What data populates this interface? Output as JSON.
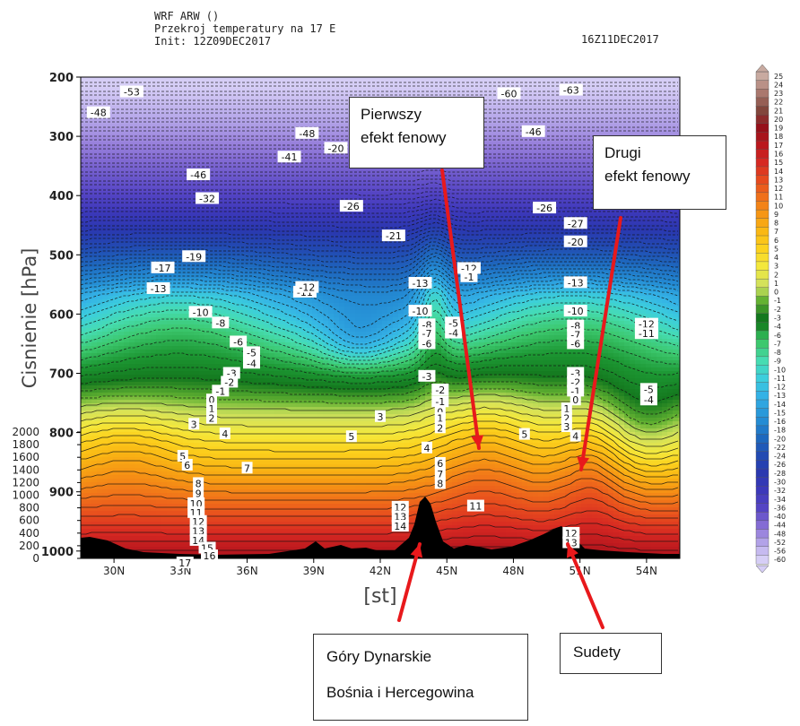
{
  "header": {
    "model": "WRF ARW ()",
    "title": "Przekroj temperatury na 17 E",
    "init": "Init: 12Z09DEC2017",
    "valid": "16Z11DEC2017"
  },
  "chart_data": {
    "type": "heatmap",
    "title": "Przekroj temperatury na 17 E",
    "xlabel": "[st]",
    "ylabel": "Cisnienie [hPa]",
    "y_ticks": [
      200,
      300,
      400,
      500,
      600,
      700,
      800,
      900,
      1000
    ],
    "ylim": [
      200,
      1000
    ],
    "x_ticks": [
      "30N",
      "33N",
      "36N",
      "39N",
      "42N",
      "45N",
      "48N",
      "51N",
      "54N"
    ],
    "xlim": [
      28.5,
      55.5
    ],
    "height_axis_ticks": [
      0,
      200,
      400,
      600,
      800,
      1000,
      1200,
      1400,
      1600,
      1800,
      2000
    ],
    "colorbar_ticks": [
      25,
      24,
      23,
      22,
      21,
      20,
      19,
      18,
      17,
      16,
      15,
      14,
      13,
      12,
      11,
      10,
      9,
      8,
      7,
      6,
      5,
      4,
      3,
      2,
      1,
      0,
      -1,
      -2,
      -3,
      -4,
      -6,
      -7,
      -8,
      -9,
      -10,
      -11,
      -12,
      -13,
      -14,
      -15,
      -16,
      -18,
      -20,
      -22,
      -24,
      -26,
      -28,
      -30,
      -32,
      -34,
      -36,
      -40,
      -44,
      -48,
      -52,
      -56,
      -60
    ],
    "isotherm_labels": [
      {
        "t": "-53",
        "lat": 30.8,
        "p": 225
      },
      {
        "t": "-48",
        "lat": 29.3,
        "p": 260
      },
      {
        "t": "-46",
        "lat": 33.8,
        "p": 365
      },
      {
        "t": "-32",
        "lat": 34.2,
        "p": 405
      },
      {
        "t": "-41",
        "lat": 37.9,
        "p": 335
      },
      {
        "t": "-48",
        "lat": 38.7,
        "p": 295
      },
      {
        "t": "-26",
        "lat": 40.7,
        "p": 418
      },
      {
        "t": "-21",
        "lat": 42.6,
        "p": 468
      },
      {
        "t": "-20",
        "lat": 40.0,
        "p": 320
      },
      {
        "t": "-13",
        "lat": 32.0,
        "p": 557
      },
      {
        "t": "-17",
        "lat": 32.2,
        "p": 522
      },
      {
        "t": "-19",
        "lat": 33.6,
        "p": 503
      },
      {
        "t": "-11",
        "lat": 38.6,
        "p": 563
      },
      {
        "t": "-12",
        "lat": 38.7,
        "p": 555
      },
      {
        "t": "-10",
        "lat": 33.9,
        "p": 597
      },
      {
        "t": "-8",
        "lat": 34.8,
        "p": 615
      },
      {
        "t": "-6",
        "lat": 35.6,
        "p": 647
      },
      {
        "t": "-5",
        "lat": 36.2,
        "p": 665
      },
      {
        "t": "-4",
        "lat": 36.2,
        "p": 683
      },
      {
        "t": "-3",
        "lat": 35.3,
        "p": 700
      },
      {
        "t": "-2",
        "lat": 35.2,
        "p": 715
      },
      {
        "t": "-1",
        "lat": 34.8,
        "p": 730
      },
      {
        "t": "0",
        "lat": 34.4,
        "p": 745
      },
      {
        "t": "1",
        "lat": 34.4,
        "p": 760
      },
      {
        "t": "2",
        "lat": 34.4,
        "p": 776
      },
      {
        "t": "3",
        "lat": 33.6,
        "p": 786
      },
      {
        "t": "4",
        "lat": 35.0,
        "p": 802
      },
      {
        "t": "5",
        "lat": 33.1,
        "p": 840
      },
      {
        "t": "6",
        "lat": 33.3,
        "p": 855
      },
      {
        "t": "7",
        "lat": 36.0,
        "p": 860
      },
      {
        "t": "8",
        "lat": 33.8,
        "p": 886
      },
      {
        "t": "9",
        "lat": 33.8,
        "p": 903
      },
      {
        "t": "10",
        "lat": 33.7,
        "p": 920
      },
      {
        "t": "11",
        "lat": 33.7,
        "p": 935
      },
      {
        "t": "12",
        "lat": 33.8,
        "p": 950
      },
      {
        "t": "13",
        "lat": 33.8,
        "p": 966
      },
      {
        "t": "14",
        "lat": 33.8,
        "p": 982
      },
      {
        "t": "15",
        "lat": 34.2,
        "p": 995
      },
      {
        "t": "16",
        "lat": 34.3,
        "p": 1008
      },
      {
        "t": "17",
        "lat": 33.2,
        "p": 1020
      },
      {
        "t": "3",
        "lat": 42.0,
        "p": 773
      },
      {
        "t": "5",
        "lat": 40.7,
        "p": 807
      },
      {
        "t": "11",
        "lat": 46.3,
        "p": 924
      },
      {
        "t": "12",
        "lat": 42.9,
        "p": 926
      },
      {
        "t": "13",
        "lat": 42.9,
        "p": 942
      },
      {
        "t": "14",
        "lat": 42.9,
        "p": 958
      },
      {
        "t": "-13",
        "lat": 43.8,
        "p": 548
      },
      {
        "t": "-10",
        "lat": 43.8,
        "p": 595
      },
      {
        "t": "-8",
        "lat": 44.1,
        "p": 618
      },
      {
        "t": "-7",
        "lat": 44.1,
        "p": 633
      },
      {
        "t": "-6",
        "lat": 44.1,
        "p": 650
      },
      {
        "t": "-5",
        "lat": 45.3,
        "p": 615
      },
      {
        "t": "-4",
        "lat": 45.3,
        "p": 632
      },
      {
        "t": "-3",
        "lat": 44.1,
        "p": 705
      },
      {
        "t": "-2",
        "lat": 44.7,
        "p": 728
      },
      {
        "t": "-1",
        "lat": 44.7,
        "p": 748
      },
      {
        "t": "0",
        "lat": 44.7,
        "p": 765
      },
      {
        "t": "1",
        "lat": 44.7,
        "p": 776
      },
      {
        "t": "2",
        "lat": 44.7,
        "p": 792
      },
      {
        "t": "4",
        "lat": 44.1,
        "p": 826
      },
      {
        "t": "6",
        "lat": 44.7,
        "p": 852
      },
      {
        "t": "7",
        "lat": 44.7,
        "p": 870
      },
      {
        "t": "8",
        "lat": 44.7,
        "p": 886
      },
      {
        "t": "-12",
        "lat": 46.0,
        "p": 523
      },
      {
        "t": "-1",
        "lat": 46.0,
        "p": 537
      },
      {
        "t": "5",
        "lat": 48.5,
        "p": 803
      },
      {
        "t": "-60",
        "lat": 47.8,
        "p": 228
      },
      {
        "t": "-63",
        "lat": 50.6,
        "p": 222
      },
      {
        "t": "-46",
        "lat": 48.9,
        "p": 292
      },
      {
        "t": "-26",
        "lat": 49.4,
        "p": 421
      },
      {
        "t": "-27",
        "lat": 50.8,
        "p": 447
      },
      {
        "t": "-20",
        "lat": 50.8,
        "p": 478
      },
      {
        "t": "-13",
        "lat": 50.8,
        "p": 547
      },
      {
        "t": "-10",
        "lat": 50.8,
        "p": 595
      },
      {
        "t": "-8",
        "lat": 50.8,
        "p": 620
      },
      {
        "t": "-7",
        "lat": 50.8,
        "p": 635
      },
      {
        "t": "-6",
        "lat": 50.8,
        "p": 650
      },
      {
        "t": "-3",
        "lat": 50.8,
        "p": 700
      },
      {
        "t": "-2",
        "lat": 50.8,
        "p": 715
      },
      {
        "t": "-1",
        "lat": 50.8,
        "p": 730
      },
      {
        "t": "0",
        "lat": 50.8,
        "p": 745
      },
      {
        "t": "1",
        "lat": 50.4,
        "p": 760
      },
      {
        "t": "2",
        "lat": 50.4,
        "p": 776
      },
      {
        "t": "3",
        "lat": 50.4,
        "p": 790
      },
      {
        "t": "4",
        "lat": 50.8,
        "p": 806
      },
      {
        "t": "12",
        "lat": 50.6,
        "p": 970
      },
      {
        "t": "13",
        "lat": 50.6,
        "p": 986
      },
      {
        "t": "-12",
        "lat": 54.0,
        "p": 617
      },
      {
        "t": "-11",
        "lat": 54.0,
        "p": 633
      },
      {
        "t": "-5",
        "lat": 54.1,
        "p": 727
      },
      {
        "t": "-4",
        "lat": 54.1,
        "p": 745
      }
    ]
  },
  "annotations": {
    "first_foehn": "Pierwszy\nefekt fenowy",
    "second_foehn": "Drugi\nefekt fenowy",
    "dinaric_line1": "Góry Dynarskie",
    "dinaric_line2": "Bośnia i Hercegowina",
    "sudety": "Sudety"
  },
  "colors": {
    "arrow": "#e8191c",
    "terrain": "#000000"
  }
}
